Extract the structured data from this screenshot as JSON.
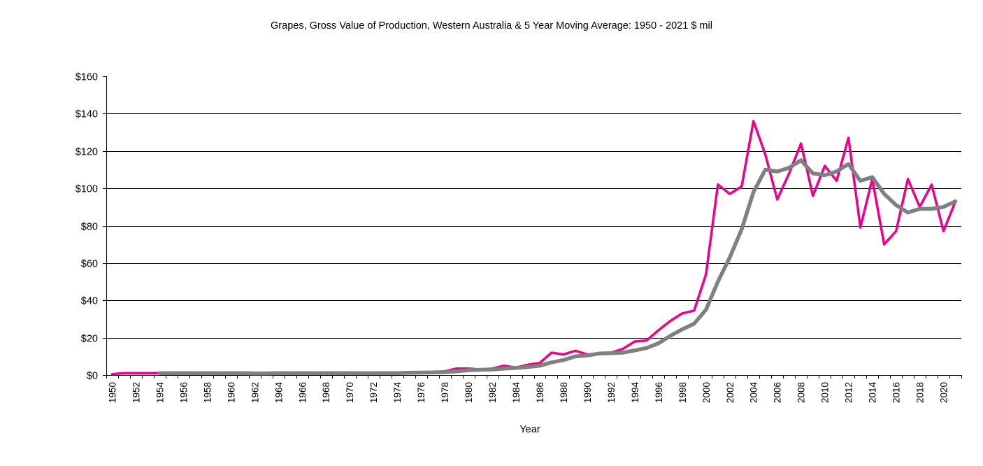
{
  "chart_data": {
    "type": "line",
    "title": "Grapes, Gross Value of Production, Western Australia & 5 Year Moving Average: 1950 - 2021 $ mil",
    "xlabel": "Year",
    "ylabel": "",
    "ylim": [
      0,
      160
    ],
    "y_ticks": [
      0,
      20,
      40,
      60,
      80,
      100,
      120,
      140,
      160
    ],
    "y_tick_labels": [
      "$0",
      "$20",
      "$40",
      "$60",
      "$80",
      "$100",
      "$120",
      "$140",
      "$160"
    ],
    "x_tick_labels": [
      "1950",
      "1952",
      "1954",
      "1956",
      "1958",
      "1960",
      "1962",
      "1964",
      "1966",
      "1968",
      "1970",
      "1972",
      "1974",
      "1976",
      "1978",
      "1980",
      "1982",
      "1984",
      "1986",
      "1988",
      "1990",
      "1992",
      "1994",
      "1996",
      "1998",
      "2000",
      "2002",
      "2004",
      "2006",
      "2008",
      "2010",
      "2012",
      "2014",
      "2016",
      "2018",
      "2020"
    ],
    "grid": true,
    "legend": "none",
    "x_start": 1950,
    "x_end": 2021,
    "series": [
      {
        "name": "Gross Value of Production",
        "color": "#ec008c",
        "values": [
          0.5,
          1,
          1,
          1,
          1,
          1,
          1,
          1,
          1,
          1,
          1,
          1,
          0.8,
          0.8,
          1,
          1,
          1,
          1,
          1,
          1,
          1,
          1,
          1,
          1,
          1,
          1.5,
          1.5,
          1.5,
          2,
          3.5,
          3.5,
          3,
          3.5,
          5,
          4,
          5.5,
          6.5,
          12,
          11,
          13,
          11,
          11.5,
          12,
          14,
          18,
          18.5,
          24,
          29,
          33,
          34.5,
          54,
          102,
          97,
          101,
          136,
          118,
          94,
          108,
          124,
          96,
          112,
          104,
          127,
          79,
          105,
          70,
          77,
          105,
          90,
          102,
          77,
          93
        ]
      },
      {
        "name": "5 Year Moving Average",
        "color": "#808080",
        "values": [
          null,
          null,
          null,
          null,
          1,
          1,
          1,
          1,
          1,
          1,
          1,
          1,
          0.9,
          0.9,
          1,
          1,
          1,
          1,
          1,
          1,
          1,
          1,
          1,
          1,
          1,
          1.2,
          1.3,
          1.4,
          1.6,
          2,
          2.6,
          2.8,
          3,
          3.5,
          3.8,
          4.3,
          5,
          6.8,
          8,
          10,
          10.5,
          11.5,
          11.7,
          12,
          13.2,
          14.5,
          17,
          21,
          24.5,
          27.5,
          35,
          50,
          63,
          78,
          98,
          110,
          109,
          111,
          115,
          108,
          107,
          109,
          113,
          104,
          106,
          97,
          91,
          87,
          89,
          89,
          90,
          93
        ]
      }
    ]
  }
}
